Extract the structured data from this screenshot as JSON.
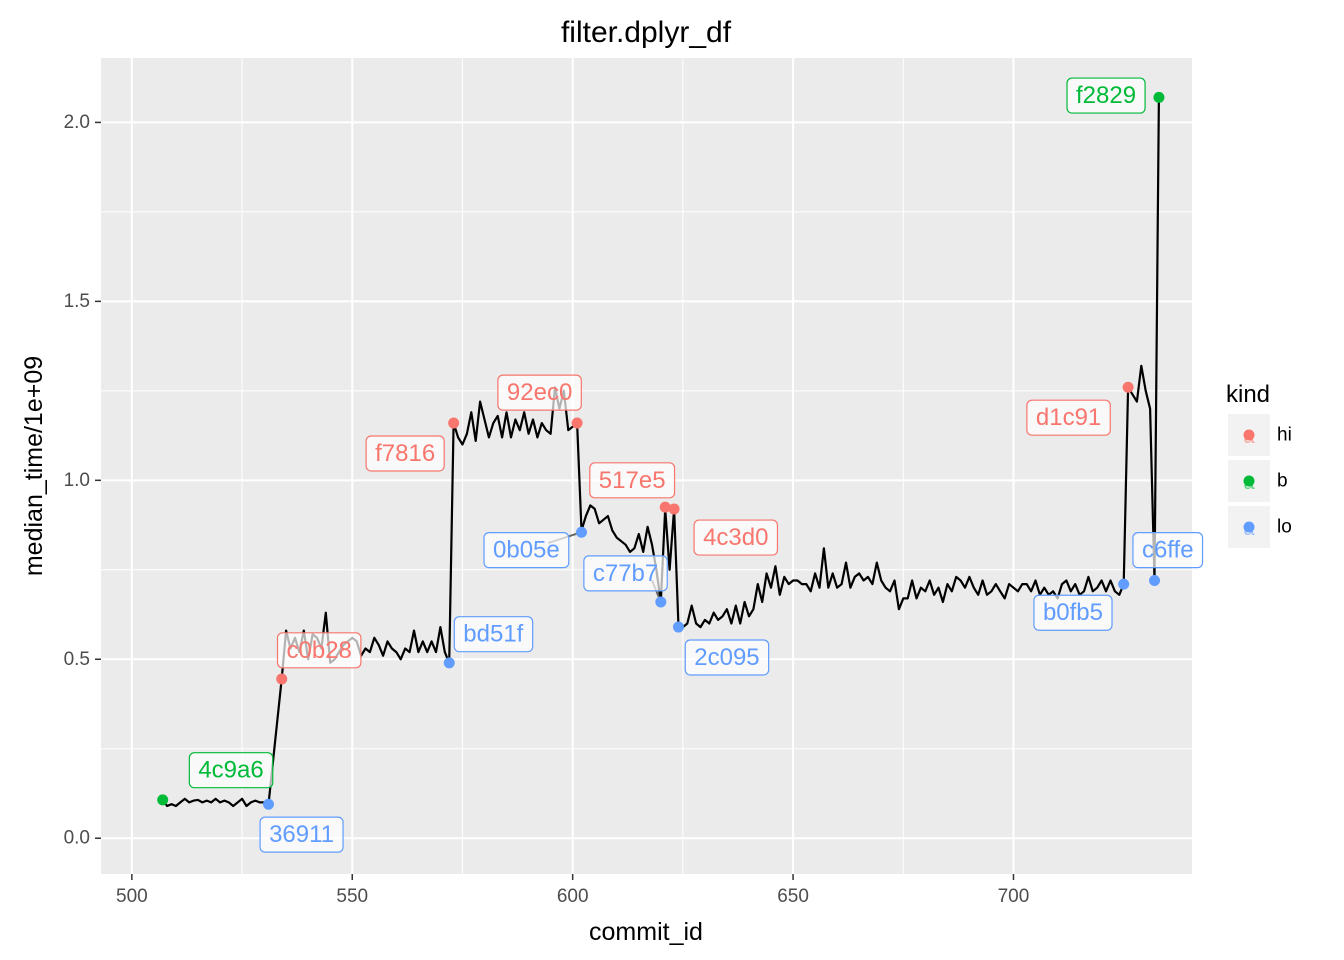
{
  "chart_data": {
    "type": "line",
    "title": "filter.dplyr_df",
    "xlabel": "commit_id",
    "ylabel": "median_time/1e+09",
    "xlim": [
      493,
      740.5
    ],
    "ylim": [
      -0.1,
      2.18
    ],
    "x_ticks": [
      500,
      550,
      600,
      650,
      700
    ],
    "y_ticks": [
      0.0,
      0.5,
      1.0,
      1.5,
      2.0
    ],
    "x_tick_labels": [
      "500",
      "550",
      "600",
      "650",
      "700"
    ],
    "y_tick_labels": [
      "0.0",
      "0.5",
      "1.0",
      "1.5",
      "2.0"
    ],
    "grid": true,
    "legend": {
      "title": "kind",
      "position": "right",
      "items": [
        {
          "key": "hi",
          "label": "hi",
          "color": "#F8766D"
        },
        {
          "key": "b",
          "label": "b",
          "color": "#00BA38"
        },
        {
          "key": "lo",
          "label": "lo",
          "color": "#619CFF"
        }
      ]
    },
    "line_color": "#000000",
    "line_points": [
      [
        507,
        0.107
      ],
      [
        508,
        0.09
      ],
      [
        509,
        0.095
      ],
      [
        510,
        0.09
      ],
      [
        511,
        0.1
      ],
      [
        512,
        0.11
      ],
      [
        513,
        0.1
      ],
      [
        514,
        0.105
      ],
      [
        515,
        0.107
      ],
      [
        516,
        0.1
      ],
      [
        517,
        0.105
      ],
      [
        518,
        0.1
      ],
      [
        519,
        0.11
      ],
      [
        520,
        0.1
      ],
      [
        521,
        0.105
      ],
      [
        522,
        0.1
      ],
      [
        523,
        0.09
      ],
      [
        524,
        0.1
      ],
      [
        525,
        0.11
      ],
      [
        526,
        0.09
      ],
      [
        527,
        0.1
      ],
      [
        528,
        0.105
      ],
      [
        529,
        0.1
      ],
      [
        530,
        0.1
      ],
      [
        531,
        0.095
      ],
      [
        534,
        0.445
      ],
      [
        535,
        0.58
      ],
      [
        536,
        0.53
      ],
      [
        537,
        0.56
      ],
      [
        538,
        0.52
      ],
      [
        539,
        0.58
      ],
      [
        540,
        0.5
      ],
      [
        541,
        0.57
      ],
      [
        542,
        0.56
      ],
      [
        543,
        0.53
      ],
      [
        544,
        0.63
      ],
      [
        545,
        0.49
      ],
      [
        546,
        0.5
      ],
      [
        547,
        0.52
      ],
      [
        548,
        0.54
      ],
      [
        549,
        0.55
      ],
      [
        550,
        0.56
      ],
      [
        551,
        0.55
      ],
      [
        552,
        0.51
      ],
      [
        553,
        0.53
      ],
      [
        554,
        0.52
      ],
      [
        555,
        0.56
      ],
      [
        556,
        0.54
      ],
      [
        557,
        0.51
      ],
      [
        558,
        0.55
      ],
      [
        559,
        0.53
      ],
      [
        560,
        0.52
      ],
      [
        561,
        0.5
      ],
      [
        562,
        0.53
      ],
      [
        563,
        0.52
      ],
      [
        564,
        0.58
      ],
      [
        565,
        0.52
      ],
      [
        566,
        0.55
      ],
      [
        567,
        0.52
      ],
      [
        568,
        0.55
      ],
      [
        569,
        0.52
      ],
      [
        570,
        0.59
      ],
      [
        571,
        0.52
      ],
      [
        572,
        0.49
      ],
      [
        573,
        1.16
      ],
      [
        574,
        1.12
      ],
      [
        575,
        1.1
      ],
      [
        576,
        1.13
      ],
      [
        577,
        1.19
      ],
      [
        578,
        1.11
      ],
      [
        579,
        1.22
      ],
      [
        580,
        1.17
      ],
      [
        581,
        1.12
      ],
      [
        582,
        1.16
      ],
      [
        583,
        1.18
      ],
      [
        584,
        1.12
      ],
      [
        585,
        1.19
      ],
      [
        586,
        1.12
      ],
      [
        587,
        1.17
      ],
      [
        588,
        1.14
      ],
      [
        589,
        1.19
      ],
      [
        590,
        1.13
      ],
      [
        591,
        1.17
      ],
      [
        592,
        1.12
      ],
      [
        593,
        1.16
      ],
      [
        594,
        1.14
      ],
      [
        595,
        1.13
      ],
      [
        596,
        1.26
      ],
      [
        597,
        1.2
      ],
      [
        598,
        1.25
      ],
      [
        599,
        1.14
      ],
      [
        601,
        1.16
      ],
      [
        602,
        0.86
      ],
      [
        603,
        0.9
      ],
      [
        604,
        0.93
      ],
      [
        605,
        0.92
      ],
      [
        606,
        0.88
      ],
      [
        607,
        0.89
      ],
      [
        608,
        0.9
      ],
      [
        609,
        0.86
      ],
      [
        610,
        0.84
      ],
      [
        611,
        0.83
      ],
      [
        612,
        0.82
      ],
      [
        613,
        0.8
      ],
      [
        614,
        0.81
      ],
      [
        615,
        0.85
      ],
      [
        616,
        0.8
      ],
      [
        617,
        0.87
      ],
      [
        618,
        0.82
      ],
      [
        619,
        0.75
      ],
      [
        620,
        0.66
      ],
      [
        621,
        0.92
      ],
      [
        622,
        0.75
      ],
      [
        623,
        0.92
      ],
      [
        624,
        0.59
      ],
      [
        625,
        0.59
      ],
      [
        626,
        0.6
      ],
      [
        627,
        0.65
      ],
      [
        628,
        0.6
      ],
      [
        629,
        0.59
      ],
      [
        630,
        0.61
      ],
      [
        631,
        0.6
      ],
      [
        632,
        0.63
      ],
      [
        633,
        0.61
      ],
      [
        634,
        0.62
      ],
      [
        635,
        0.64
      ],
      [
        636,
        0.6
      ],
      [
        637,
        0.65
      ],
      [
        638,
        0.6
      ],
      [
        639,
        0.66
      ],
      [
        640,
        0.62
      ],
      [
        641,
        0.64
      ],
      [
        642,
        0.71
      ],
      [
        643,
        0.66
      ],
      [
        644,
        0.74
      ],
      [
        645,
        0.7
      ],
      [
        646,
        0.76
      ],
      [
        647,
        0.68
      ],
      [
        648,
        0.73
      ],
      [
        649,
        0.71
      ],
      [
        650,
        0.72
      ],
      [
        651,
        0.72
      ],
      [
        652,
        0.71
      ],
      [
        653,
        0.71
      ],
      [
        654,
        0.69
      ],
      [
        655,
        0.74
      ],
      [
        656,
        0.7
      ],
      [
        657,
        0.81
      ],
      [
        658,
        0.7
      ],
      [
        659,
        0.74
      ],
      [
        660,
        0.7
      ],
      [
        661,
        0.71
      ],
      [
        662,
        0.77
      ],
      [
        663,
        0.7
      ],
      [
        664,
        0.73
      ],
      [
        665,
        0.74
      ],
      [
        666,
        0.72
      ],
      [
        667,
        0.73
      ],
      [
        668,
        0.71
      ],
      [
        669,
        0.77
      ],
      [
        670,
        0.72
      ],
      [
        671,
        0.7
      ],
      [
        672,
        0.69
      ],
      [
        673,
        0.72
      ],
      [
        674,
        0.64
      ],
      [
        675,
        0.67
      ],
      [
        676,
        0.67
      ],
      [
        677,
        0.72
      ],
      [
        678,
        0.67
      ],
      [
        679,
        0.7
      ],
      [
        680,
        0.69
      ],
      [
        681,
        0.72
      ],
      [
        682,
        0.68
      ],
      [
        683,
        0.7
      ],
      [
        684,
        0.66
      ],
      [
        685,
        0.71
      ],
      [
        686,
        0.69
      ],
      [
        687,
        0.73
      ],
      [
        688,
        0.72
      ],
      [
        689,
        0.7
      ],
      [
        690,
        0.73
      ],
      [
        691,
        0.7
      ],
      [
        692,
        0.68
      ],
      [
        693,
        0.72
      ],
      [
        694,
        0.68
      ],
      [
        695,
        0.69
      ],
      [
        696,
        0.71
      ],
      [
        697,
        0.69
      ],
      [
        698,
        0.67
      ],
      [
        699,
        0.71
      ],
      [
        700,
        0.7
      ],
      [
        701,
        0.69
      ],
      [
        702,
        0.71
      ],
      [
        703,
        0.71
      ],
      [
        704,
        0.69
      ],
      [
        705,
        0.72
      ],
      [
        706,
        0.68
      ],
      [
        707,
        0.7
      ],
      [
        708,
        0.68
      ],
      [
        709,
        0.69
      ],
      [
        710,
        0.67
      ],
      [
        711,
        0.71
      ],
      [
        712,
        0.72
      ],
      [
        713,
        0.69
      ],
      [
        714,
        0.71
      ],
      [
        715,
        0.68
      ],
      [
        716,
        0.69
      ],
      [
        717,
        0.73
      ],
      [
        718,
        0.69
      ],
      [
        719,
        0.7
      ],
      [
        720,
        0.72
      ],
      [
        721,
        0.69
      ],
      [
        722,
        0.72
      ],
      [
        723,
        0.69
      ],
      [
        724,
        0.68
      ],
      [
        725,
        0.71
      ],
      [
        726,
        1.26
      ],
      [
        727,
        1.24
      ],
      [
        728,
        1.22
      ],
      [
        729,
        1.32
      ],
      [
        730,
        1.25
      ],
      [
        731,
        1.2
      ],
      [
        732,
        0.72
      ],
      [
        733,
        2.07
      ]
    ],
    "points": [
      {
        "x": 507,
        "y": 0.107,
        "kind": "b",
        "label": "4c9a6"
      },
      {
        "x": 531,
        "y": 0.095,
        "kind": "lo",
        "label": "36911"
      },
      {
        "x": 534,
        "y": 0.445,
        "kind": "hi",
        "label": "c0b28"
      },
      {
        "x": 572,
        "y": 0.49,
        "kind": "lo",
        "label": "bd51f"
      },
      {
        "x": 573,
        "y": 1.16,
        "kind": "hi",
        "label": "f7816"
      },
      {
        "x": 601,
        "y": 1.16,
        "kind": "hi",
        "label": "92ec0"
      },
      {
        "x": 602,
        "y": 0.855,
        "kind": "lo",
        "label": "0b05e"
      },
      {
        "x": 620,
        "y": 0.66,
        "kind": "lo",
        "label": "c77b7"
      },
      {
        "x": 621,
        "y": 0.925,
        "kind": "hi",
        "label": "517e5"
      },
      {
        "x": 623,
        "y": 0.92,
        "kind": "hi",
        "label": "4c3d0"
      },
      {
        "x": 624,
        "y": 0.59,
        "kind": "lo",
        "label": "2c095"
      },
      {
        "x": 725,
        "y": 0.71,
        "kind": "lo",
        "label": "b0fb5"
      },
      {
        "x": 726,
        "y": 1.26,
        "kind": "hi",
        "label": "d1c91"
      },
      {
        "x": 732,
        "y": 0.72,
        "kind": "lo",
        "label": "c6ffe"
      },
      {
        "x": 733,
        "y": 2.07,
        "kind": "b",
        "label": "f2829"
      }
    ],
    "labels": [
      {
        "text": "4c9a6",
        "kind": "b",
        "x": 522.5,
        "y": 0.19
      },
      {
        "text": "36911",
        "kind": "lo",
        "x": 538.5,
        "y": 0.01
      },
      {
        "text": "c0b28",
        "kind": "hi",
        "x": 542.5,
        "y": 0.525
      },
      {
        "text": "bd51f",
        "kind": "lo",
        "x": 582,
        "y": 0.57
      },
      {
        "text": "f7816",
        "kind": "hi",
        "x": 562,
        "y": 1.075
      },
      {
        "text": "92ec0",
        "kind": "hi",
        "x": 592.5,
        "y": 1.245
      },
      {
        "text": "0b05e",
        "kind": "lo",
        "x": 589.5,
        "y": 0.805
      },
      {
        "text": "c77b7",
        "kind": "lo",
        "x": 612,
        "y": 0.74
      },
      {
        "text": "517e5",
        "kind": "hi",
        "x": 613.5,
        "y": 1.0
      },
      {
        "text": "4c3d0",
        "kind": "hi",
        "x": 637,
        "y": 0.84
      },
      {
        "text": "2c095",
        "kind": "lo",
        "x": 635,
        "y": 0.505
      },
      {
        "text": "b0fb5",
        "kind": "lo",
        "x": 713.5,
        "y": 0.63
      },
      {
        "text": "d1c91",
        "kind": "hi",
        "x": 712.5,
        "y": 1.175
      },
      {
        "text": "c6ffe",
        "kind": "lo",
        "x": 735,
        "y": 0.805
      },
      {
        "text": "f2829",
        "kind": "b",
        "x": 721,
        "y": 2.075
      }
    ],
    "connectors": [
      {
        "from": [
          602,
          0.855
        ],
        "to": [
          594.5,
          0.825
        ]
      },
      {
        "from": [
          620,
          0.66
        ],
        "to": [
          618,
          0.72
        ]
      }
    ]
  }
}
